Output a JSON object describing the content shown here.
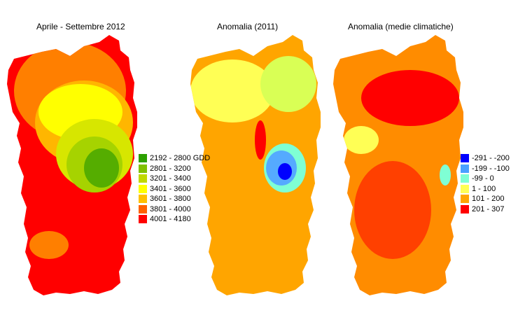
{
  "maps": [
    {
      "title": "Aprile - Settembre 2012",
      "base_color": "#ff0000",
      "patch_colors": [
        "#ff7f00",
        "#ffb600",
        "#ffff00",
        "#d7e600",
        "#a6d300",
        "#55ad00"
      ]
    },
    {
      "title": "Anomalia (2011)",
      "base_color": "#ffa500",
      "patch_colors": [
        "#ffff55",
        "#d9ff55",
        "#7fffd4",
        "#55aaff",
        "#0000ff",
        "#ff0000"
      ]
    },
    {
      "title": "Anomalia (medie climatiche)",
      "base_color": "#ff8c00",
      "patch_colors": [
        "#ff0000",
        "#ff4000",
        "#ffff55",
        "#7fffd4"
      ]
    }
  ],
  "legend_gdd": [
    {
      "label": "2192 - 2800 GDD",
      "color": "#2ca000"
    },
    {
      "label": "2801 - 3200",
      "color": "#7fc000"
    },
    {
      "label": "3201 - 3400",
      "color": "#c0d800"
    },
    {
      "label": "3401 - 3600",
      "color": "#ffff00"
    },
    {
      "label": "3601 - 3800",
      "color": "#ffc000"
    },
    {
      "label": "3801 - 4000",
      "color": "#ff6000"
    },
    {
      "label": "4001 - 4180",
      "color": "#ff0000"
    }
  ],
  "legend_anomaly": [
    {
      "label": "-291 - -200",
      "color": "#0000ff"
    },
    {
      "label": "-199 - -100",
      "color": "#4aa0ff"
    },
    {
      "label": "-99 - 0",
      "color": "#7fffd4"
    },
    {
      "label": "1 - 100",
      "color": "#ffff55"
    },
    {
      "label": "101 - 200",
      "color": "#ffa500"
    },
    {
      "label": "201 - 307",
      "color": "#ff0000"
    }
  ]
}
